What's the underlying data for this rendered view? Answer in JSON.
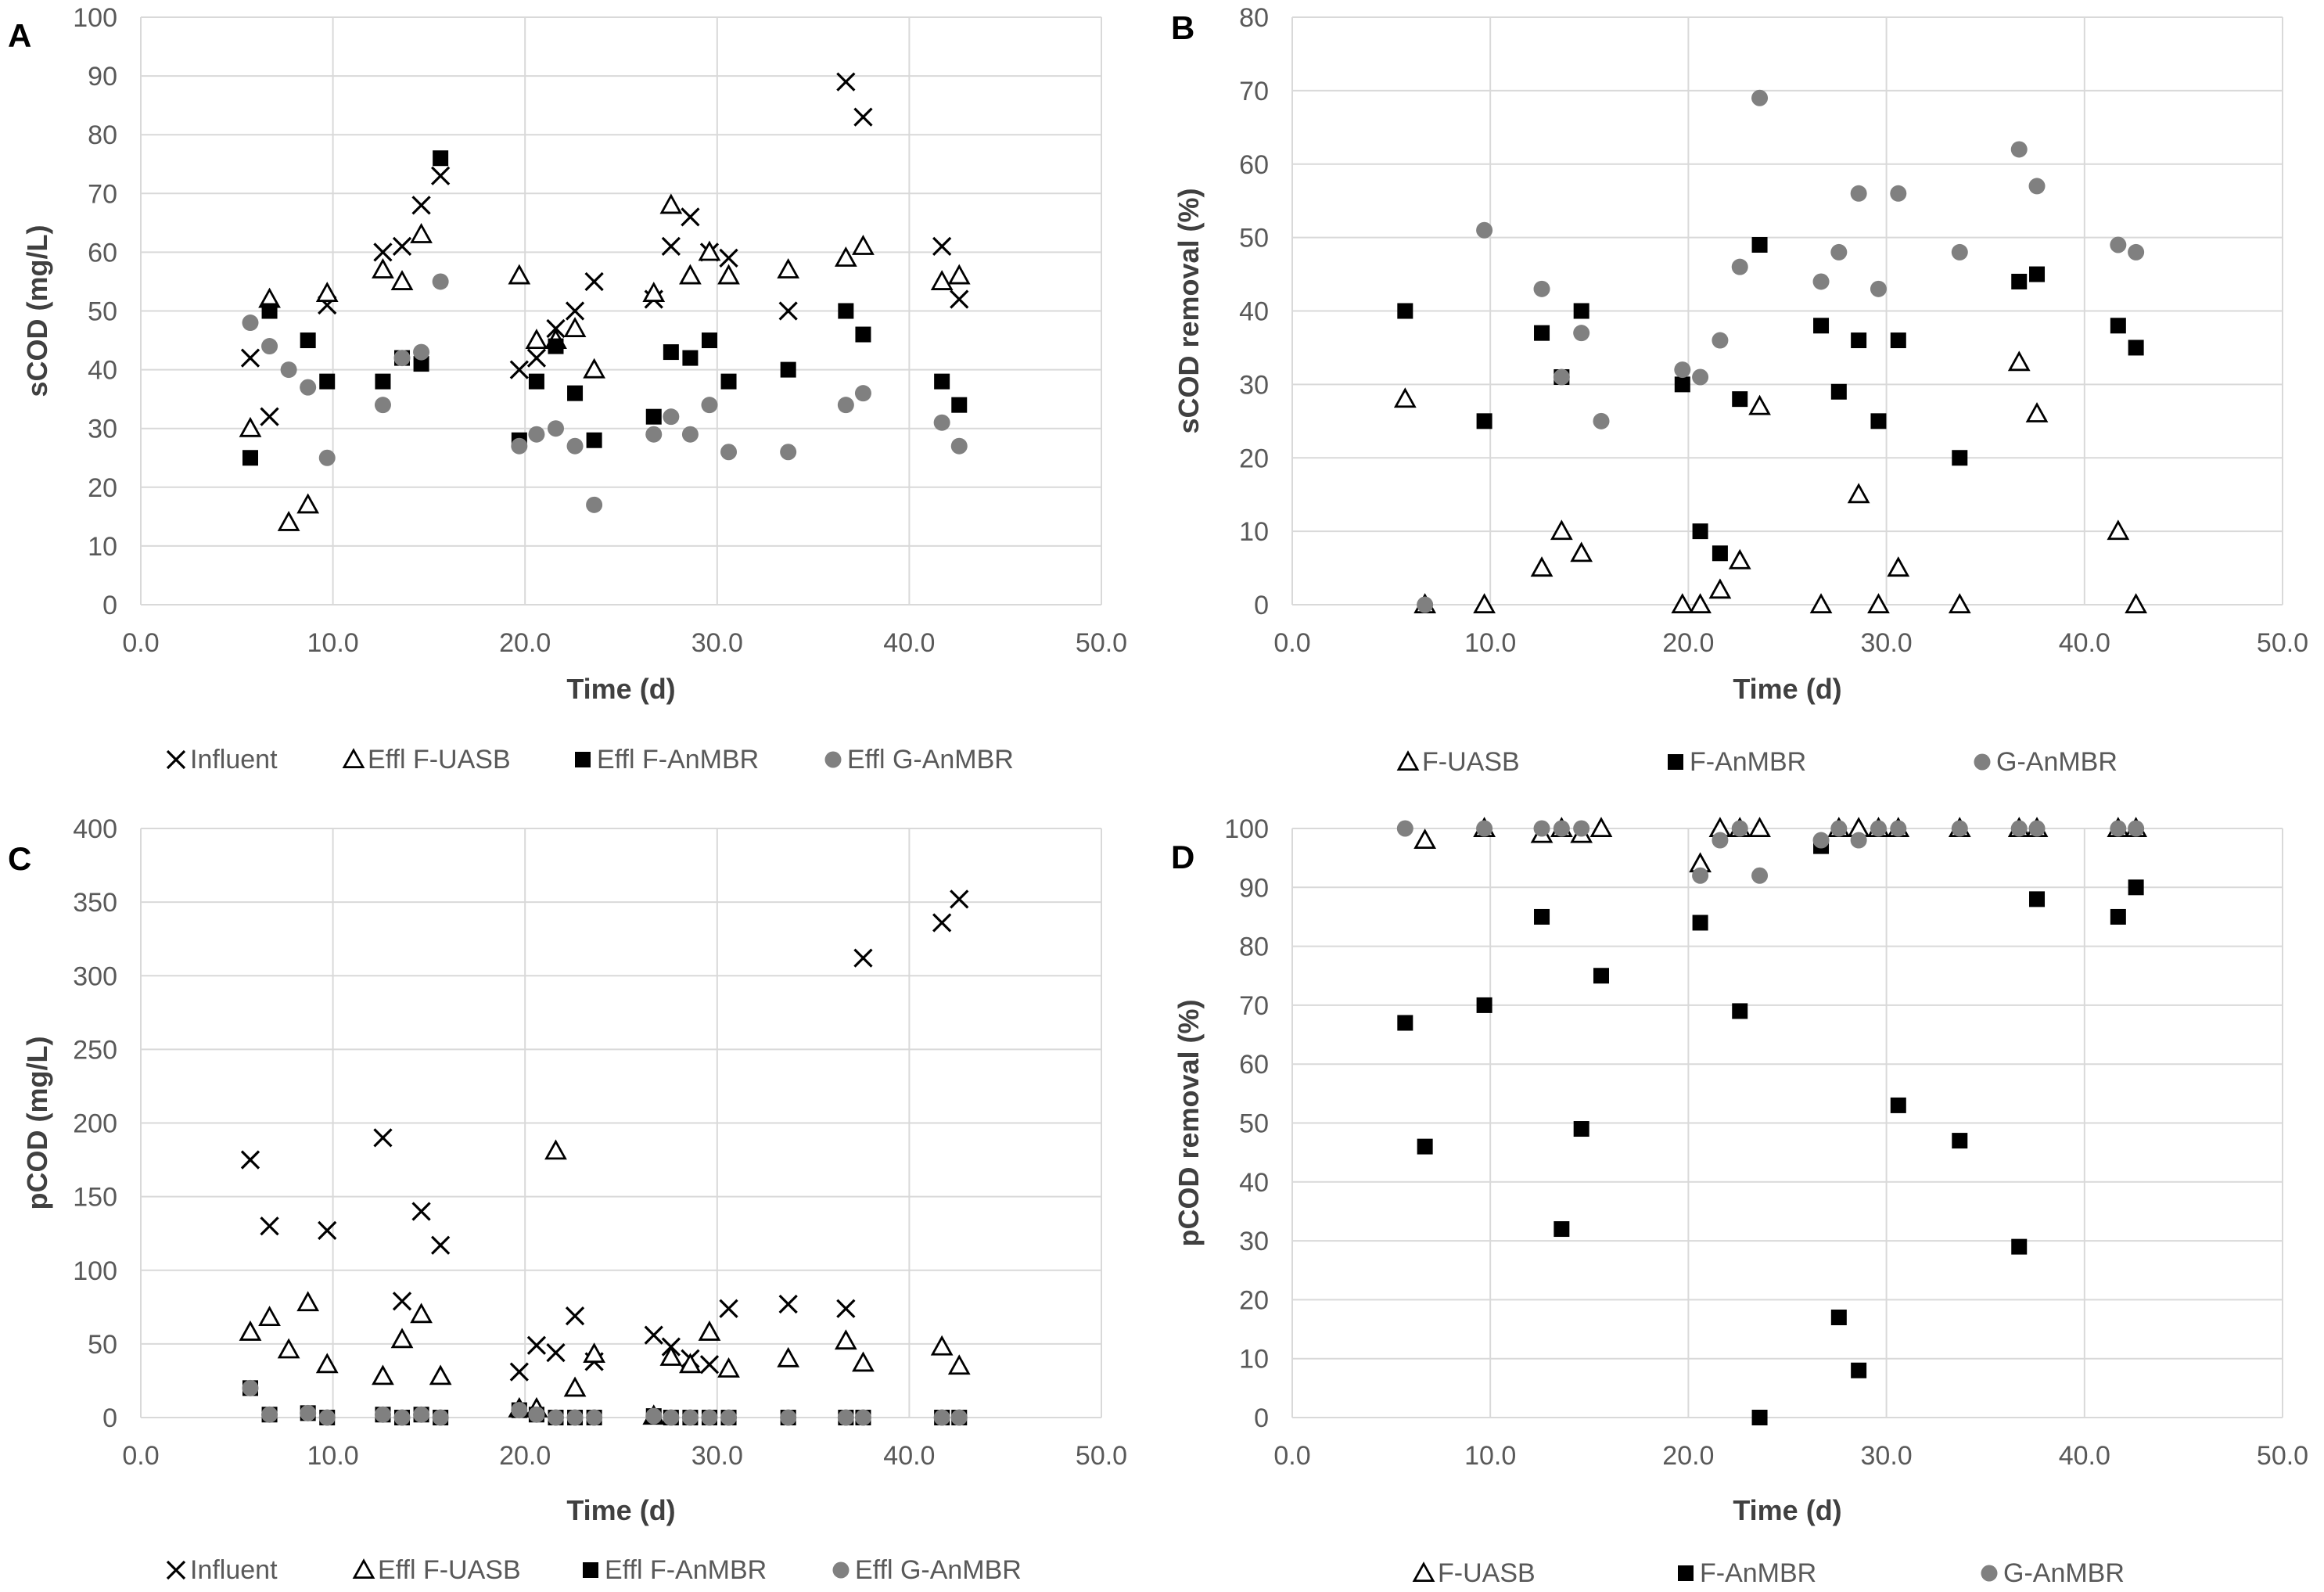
{
  "colors": {
    "grid": "#d9d9d9",
    "text": "#595959",
    "label": "#404040",
    "panel_letter": "#000000",
    "influent": "#000000",
    "f_uasb": "#000000",
    "f_anmbr": "#000000",
    "g_anmbr": "#808080"
  },
  "chart_data": [
    {
      "panel": "A",
      "type": "scatter",
      "xlabel": "Time (d)",
      "ylabel": "sCOD (mg/L)",
      "xlim": [
        0,
        50
      ],
      "ylim": [
        0,
        100
      ],
      "xticks": [
        "0.0",
        "10.0",
        "20.0",
        "30.0",
        "40.0",
        "50.0"
      ],
      "yticks": [
        "0",
        "10",
        "20",
        "30",
        "40",
        "50",
        "60",
        "70",
        "80",
        "90",
        "100"
      ],
      "grid": true,
      "legend_position": "bottom",
      "series": [
        {
          "name": "Influent",
          "marker": "x",
          "x": [
            5.7,
            6.7,
            9.7,
            12.6,
            13.6,
            14.6,
            15.6,
            19.7,
            20.6,
            21.6,
            22.6,
            23.6,
            26.7,
            27.6,
            28.6,
            29.6,
            30.6,
            33.7,
            36.7,
            37.6,
            41.7,
            42.6
          ],
          "y": [
            42,
            32,
            51,
            60,
            61,
            68,
            73,
            40,
            42,
            47,
            50,
            55,
            52,
            61,
            66,
            60,
            59,
            50,
            89,
            83,
            61,
            52
          ]
        },
        {
          "name": "Effl F-UASB",
          "marker": "triangle",
          "x": [
            5.7,
            6.7,
            7.7,
            8.7,
            9.7,
            12.6,
            13.6,
            14.6,
            19.7,
            20.6,
            21.6,
            22.6,
            23.6,
            26.7,
            27.6,
            28.6,
            29.6,
            30.6,
            33.7,
            36.7,
            37.6,
            41.7,
            42.6
          ],
          "y": [
            30,
            52,
            14,
            17,
            53,
            57,
            55,
            63,
            56,
            45,
            45,
            47,
            40,
            53,
            68,
            56,
            60,
            56,
            57,
            59,
            61,
            55,
            56
          ]
        },
        {
          "name": "Effl F-AnMBR",
          "marker": "square",
          "x": [
            5.7,
            6.7,
            8.7,
            9.7,
            12.6,
            13.6,
            14.6,
            15.6,
            19.7,
            20.6,
            21.6,
            22.6,
            23.6,
            26.7,
            27.6,
            28.6,
            29.6,
            30.6,
            33.7,
            36.7,
            37.6,
            41.7,
            42.6
          ],
          "y": [
            25,
            50,
            45,
            38,
            38,
            42,
            41,
            76,
            28,
            38,
            44,
            36,
            28,
            32,
            43,
            42,
            45,
            38,
            40,
            50,
            46,
            38,
            34
          ]
        },
        {
          "name": "Effl G-AnMBR",
          "marker": "circle",
          "x": [
            5.7,
            6.7,
            7.7,
            8.7,
            9.7,
            12.6,
            13.6,
            14.6,
            15.6,
            19.7,
            20.6,
            21.6,
            22.6,
            23.6,
            26.7,
            27.6,
            28.6,
            29.6,
            30.6,
            33.7,
            36.7,
            37.6,
            41.7,
            42.6
          ],
          "y": [
            48,
            44,
            40,
            37,
            25,
            34,
            42,
            43,
            55,
            27,
            29,
            30,
            27,
            17,
            29,
            32,
            29,
            34,
            26,
            26,
            34,
            36,
            31,
            27
          ]
        }
      ]
    },
    {
      "panel": "B",
      "type": "scatter",
      "xlabel": "Time (d)",
      "ylabel": "sCOD removal (%)",
      "xlim": [
        0,
        50
      ],
      "ylim": [
        0,
        80
      ],
      "xticks": [
        "0.0",
        "10.0",
        "20.0",
        "30.0",
        "40.0",
        "50.0"
      ],
      "yticks": [
        "0",
        "10",
        "20",
        "30",
        "40",
        "50",
        "60",
        "70",
        "80"
      ],
      "grid": true,
      "legend_position": "bottom",
      "series": [
        {
          "name": "F-UASB",
          "marker": "triangle",
          "x": [
            5.7,
            6.7,
            9.7,
            12.6,
            13.6,
            14.6,
            19.7,
            20.6,
            21.6,
            22.6,
            23.6,
            26.7,
            28.6,
            29.6,
            30.6,
            33.7,
            36.7,
            37.6,
            41.7,
            42.6
          ],
          "y": [
            28,
            0,
            0,
            5,
            10,
            7,
            0,
            0,
            2,
            6,
            27,
            0,
            15,
            0,
            5,
            0,
            33,
            26,
            10,
            0
          ]
        },
        {
          "name": "F-AnMBR",
          "marker": "square",
          "x": [
            5.7,
            9.7,
            12.6,
            13.6,
            14.6,
            19.7,
            20.6,
            21.6,
            22.6,
            23.6,
            26.7,
            27.6,
            28.6,
            29.6,
            30.6,
            33.7,
            36.7,
            37.6,
            41.7,
            42.6
          ],
          "y": [
            40,
            25,
            37,
            31,
            40,
            30,
            10,
            7,
            28,
            49,
            38,
            29,
            36,
            25,
            36,
            20,
            44,
            45,
            38,
            35
          ]
        },
        {
          "name": "G-AnMBR",
          "marker": "circle",
          "x": [
            6.7,
            9.7,
            12.6,
            13.6,
            14.6,
            15.6,
            19.7,
            20.6,
            21.6,
            22.6,
            23.6,
            26.7,
            27.6,
            28.6,
            29.6,
            30.6,
            33.7,
            36.7,
            37.6,
            41.7,
            42.6
          ],
          "y": [
            0,
            51,
            43,
            31,
            37,
            25,
            32,
            31,
            36,
            46,
            69,
            44,
            48,
            56,
            43,
            56,
            48,
            62,
            57,
            49,
            48
          ]
        }
      ]
    },
    {
      "panel": "C",
      "type": "scatter",
      "xlabel": "Time (d)",
      "ylabel": "pCOD (mg/L)",
      "xlim": [
        0,
        50
      ],
      "ylim": [
        0,
        400
      ],
      "xticks": [
        "0.0",
        "10.0",
        "20.0",
        "30.0",
        "40.0",
        "50.0"
      ],
      "yticks": [
        "0",
        "50",
        "100",
        "150",
        "200",
        "250",
        "300",
        "350",
        "400"
      ],
      "grid": true,
      "legend_position": "bottom",
      "series": [
        {
          "name": "Influent",
          "marker": "x",
          "x": [
            5.7,
            6.7,
            9.7,
            12.6,
            13.6,
            14.6,
            15.6,
            19.7,
            20.6,
            21.6,
            22.6,
            23.6,
            26.7,
            27.6,
            28.6,
            29.6,
            30.6,
            33.7,
            36.7,
            37.6,
            41.7,
            42.6
          ],
          "y": [
            175,
            130,
            127,
            190,
            79,
            140,
            117,
            31,
            49,
            44,
            69,
            38,
            56,
            48,
            40,
            36,
            74,
            77,
            74,
            312,
            336,
            352
          ]
        },
        {
          "name": "Effl F-UASB",
          "marker": "triangle",
          "x": [
            5.7,
            6.7,
            7.7,
            8.7,
            9.7,
            12.6,
            13.6,
            14.6,
            15.6,
            19.7,
            20.6,
            21.6,
            22.6,
            23.6,
            26.7,
            27.6,
            28.6,
            29.6,
            30.6,
            33.7,
            36.7,
            37.6,
            41.7,
            42.6
          ],
          "y": [
            58,
            68,
            46,
            78,
            36,
            28,
            53,
            70,
            28,
            6,
            6,
            181,
            20,
            43,
            1,
            41,
            36,
            58,
            33,
            40,
            52,
            37,
            48,
            35
          ]
        },
        {
          "name": "Effl F-AnMBR",
          "marker": "square",
          "x": [
            5.7,
            6.7,
            8.7,
            9.7,
            12.6,
            13.6,
            14.6,
            15.6,
            19.7,
            20.6,
            21.6,
            22.6,
            23.6,
            26.7,
            27.6,
            28.6,
            29.6,
            30.6,
            33.7,
            36.7,
            37.6,
            41.7,
            42.6
          ],
          "y": [
            20,
            2,
            3,
            0,
            2,
            0,
            2,
            0,
            5,
            2,
            0,
            0,
            0,
            1,
            0,
            0,
            0,
            0,
            0,
            0,
            0,
            0,
            0
          ]
        },
        {
          "name": "Effl G-AnMBR",
          "marker": "circle",
          "x": [
            5.7,
            6.7,
            8.7,
            9.7,
            12.6,
            13.6,
            14.6,
            15.6,
            19.7,
            20.6,
            21.6,
            22.6,
            23.6,
            26.7,
            27.6,
            28.6,
            29.6,
            30.6,
            33.7,
            36.7,
            37.6,
            41.7,
            42.6
          ],
          "y": [
            20,
            2,
            3,
            0,
            2,
            0,
            2,
            0,
            5,
            2,
            0,
            0,
            0,
            1,
            0,
            0,
            0,
            0,
            0,
            0,
            0,
            0,
            0
          ]
        }
      ]
    },
    {
      "panel": "D",
      "type": "scatter",
      "xlabel": "Time (d)",
      "ylabel": "pCOD removal (%)",
      "xlim": [
        0,
        50
      ],
      "ylim": [
        0,
        100
      ],
      "xticks": [
        "0.0",
        "10.0",
        "20.0",
        "30.0",
        "40.0",
        "50.0"
      ],
      "yticks": [
        "0",
        "10",
        "20",
        "30",
        "40",
        "50",
        "60",
        "70",
        "80",
        "90",
        "100"
      ],
      "grid": true,
      "legend_position": "bottom",
      "series": [
        {
          "name": "F-UASB",
          "marker": "triangle",
          "x": [
            6.7,
            9.7,
            12.6,
            13.6,
            14.6,
            15.6,
            20.6,
            21.6,
            22.6,
            23.6,
            27.6,
            28.6,
            29.6,
            30.6,
            33.7,
            36.7,
            37.6,
            41.7,
            42.6
          ],
          "y": [
            98,
            100,
            99,
            100,
            99,
            100,
            94,
            100,
            100,
            100,
            100,
            100,
            100,
            100,
            100,
            100,
            100,
            100,
            100
          ]
        },
        {
          "name": "F-AnMBR",
          "marker": "square",
          "x": [
            5.7,
            6.7,
            9.7,
            12.6,
            13.6,
            14.6,
            15.6,
            20.6,
            22.6,
            23.6,
            26.7,
            27.6,
            28.6,
            30.6,
            33.7,
            36.7,
            37.6,
            41.7,
            42.6
          ],
          "y": [
            67,
            46,
            70,
            85,
            32,
            49,
            75,
            84,
            69,
            0,
            97,
            17,
            8,
            53,
            47,
            29,
            88,
            85,
            90
          ]
        },
        {
          "name": "G-AnMBR",
          "marker": "circle",
          "x": [
            5.7,
            9.7,
            12.6,
            13.6,
            14.6,
            20.6,
            21.6,
            22.6,
            23.6,
            26.7,
            27.6,
            28.6,
            29.6,
            30.6,
            33.7,
            36.7,
            37.6,
            41.7,
            42.6
          ],
          "y": [
            100,
            100,
            100,
            100,
            100,
            92,
            98,
            100,
            92,
            98,
            100,
            98,
            100,
            100,
            100,
            100,
            100,
            100,
            100
          ]
        }
      ]
    }
  ]
}
